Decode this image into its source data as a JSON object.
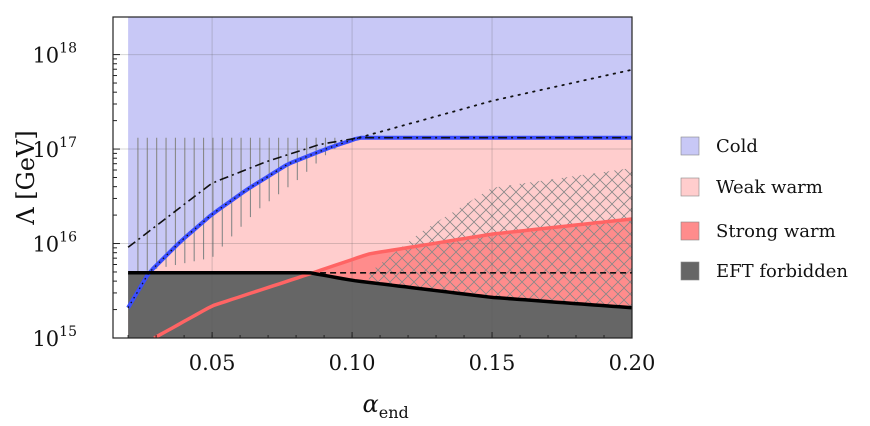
{
  "chart_data": {
    "type": "area",
    "xlabel": "α",
    "xlabel_sub": "end",
    "ylabel": "Λ [GeV]",
    "xlim": [
      0.0146,
      0.2
    ],
    "ylim": [
      1000000000000000.0,
      2.5e+18
    ],
    "y_scale": "log",
    "grid": true,
    "legend_placement": "right",
    "x_ticks": [
      "0.05",
      "0.10",
      "0.15",
      "0.20"
    ],
    "x_tick_values": [
      0.05,
      0.1,
      0.15,
      0.2
    ],
    "y_ticks": [
      {
        "base": "10",
        "exp": "15",
        "value": 15
      },
      {
        "base": "10",
        "exp": "16",
        "value": 16
      },
      {
        "base": "10",
        "exp": "17",
        "value": 17
      },
      {
        "base": "10",
        "exp": "18",
        "value": 18
      }
    ],
    "legend": [
      {
        "name": "Cold",
        "color": "#c8c8f6"
      },
      {
        "name": "Weak warm",
        "color": "#ffcdcd"
      },
      {
        "name": "Strong warm",
        "color": "#ff8c8c"
      },
      {
        "name": "EFT forbidden",
        "color": "#666666"
      }
    ],
    "curves_log10": {
      "cold_boundary_blue": {
        "x": [
          0.02,
          0.0274,
          0.039,
          0.05,
          0.0624,
          0.077,
          0.0915,
          0.1025,
          0.2
        ],
        "y": [
          15.32,
          15.69,
          16.03,
          16.31,
          16.57,
          16.84,
          17.01,
          17.12,
          17.12
        ],
        "color": "#3a4dff"
      },
      "dash_dot": {
        "x": [
          0.02,
          0.05,
          0.0697,
          0.0886,
          0.1025,
          0.2
        ],
        "y": [
          15.96,
          16.64,
          16.87,
          17.05,
          17.12,
          17.12
        ]
      },
      "dotted": {
        "x": [
          0.1025,
          0.15,
          0.2
        ],
        "y": [
          17.12,
          17.51,
          17.84
        ]
      },
      "strong_warm_boundary_red": {
        "x": [
          0.0293,
          0.05,
          0.085,
          0.106,
          0.15,
          0.2
        ],
        "y": [
          15.0,
          15.34,
          15.68,
          15.89,
          16.1,
          16.26
        ],
        "color": "#ff6464"
      },
      "eft_boundary": {
        "x": [
          0.02,
          0.085,
          0.1,
          0.15,
          0.2
        ],
        "y": [
          15.69,
          15.69,
          15.61,
          15.43,
          15.32
        ]
      },
      "eft_dashed": {
        "x": [
          0.085,
          0.2
        ],
        "y": [
          15.69,
          15.69
        ]
      },
      "crosshatch_upper": {
        "x": [
          0.106,
          0.125,
          0.15,
          0.2
        ],
        "y": [
          15.69,
          16.13,
          16.59,
          16.8
        ]
      },
      "vertical_hatch_bottom": {
        "x": [
          0.023,
          0.05,
          0.0565,
          0.066,
          0.08,
          0.093
        ],
        "y": [
          15.69,
          15.85,
          16.06,
          16.35,
          16.66,
          17.0
        ]
      }
    }
  }
}
